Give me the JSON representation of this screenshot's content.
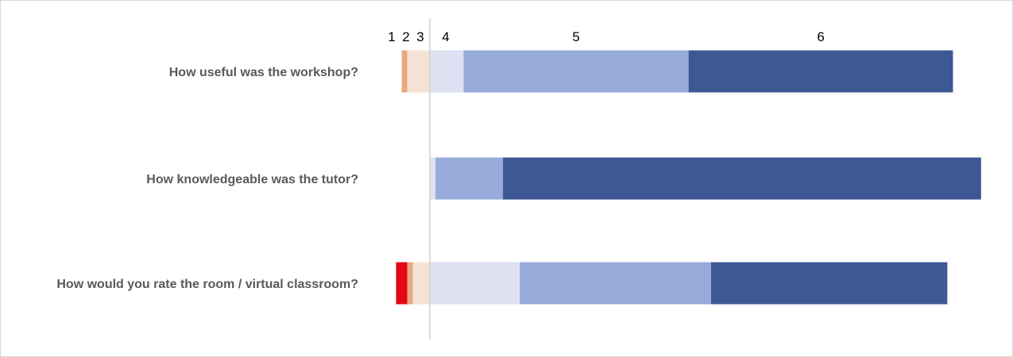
{
  "chart_data": {
    "type": "bar",
    "subtype": "diverging-stacked-horizontal",
    "scale_labels": [
      "1",
      "2",
      "3",
      "4",
      "5",
      "6"
    ],
    "colors": [
      "#e30613",
      "#e8a97e",
      "#f5e2d4",
      "#dde1f1",
      "#97abda",
      "#3e5795"
    ],
    "categories": [
      "How useful was the workshop?",
      "How knowledgeable was the tutor?",
      "How would you rate the room / virtual classroom?"
    ],
    "series": [
      {
        "name": "1",
        "values": [
          0,
          0,
          2
        ]
      },
      {
        "name": "2",
        "values": [
          1,
          0,
          1
        ]
      },
      {
        "name": "3",
        "values": [
          4,
          0,
          3
        ]
      },
      {
        "name": "4",
        "values": [
          6,
          1,
          16
        ]
      },
      {
        "name": "5",
        "values": [
          40,
          12,
          34
        ]
      },
      {
        "name": "6",
        "values": [
          47,
          85,
          42
        ]
      }
    ],
    "value_unit": "%",
    "grid": false,
    "legend": "none"
  }
}
